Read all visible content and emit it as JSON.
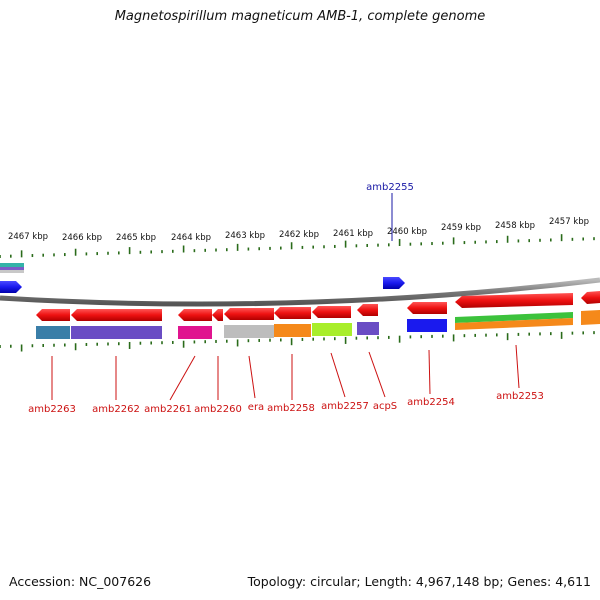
{
  "title": "Magnetospirillum magneticum AMB-1, complete genome",
  "accession_text": "Accession: NC_007626",
  "topology_text": "Topology: circular; Length: 4,967,148 bp; Genes: 4,611",
  "kbp_labels": [
    "2467 kbp",
    "2466 kbp",
    "2465 kbp",
    "2464 kbp",
    "2463 kbp",
    "2462 kbp",
    "2461 kbp",
    "2460 kbp",
    "2459 kbp",
    "2458 kbp",
    "2457 kbp"
  ],
  "gene_labels_top": [
    {
      "name": "amb2255",
      "color": "#1a1aa6"
    }
  ],
  "gene_labels_bottom": [
    {
      "name": "amb2263",
      "color": "#cc1111"
    },
    {
      "name": "amb2262",
      "color": "#cc1111"
    },
    {
      "name": "amb2261",
      "color": "#cc1111"
    },
    {
      "name": "amb2260",
      "color": "#cc1111"
    },
    {
      "name": "era",
      "color": "#cc1111"
    },
    {
      "name": "amb2258",
      "color": "#cc1111"
    },
    {
      "name": "amb2257",
      "color": "#cc1111"
    },
    {
      "name": "acpS",
      "color": "#cc1111"
    },
    {
      "name": "amb2254",
      "color": "#cc1111"
    },
    {
      "name": "amb2253",
      "color": "#cc1111"
    }
  ],
  "colors": {
    "gene_red": "#ee1111",
    "gene_blue": "#1a1aee",
    "backbone": "#888888",
    "tick_green": "#2a6b1a"
  }
}
